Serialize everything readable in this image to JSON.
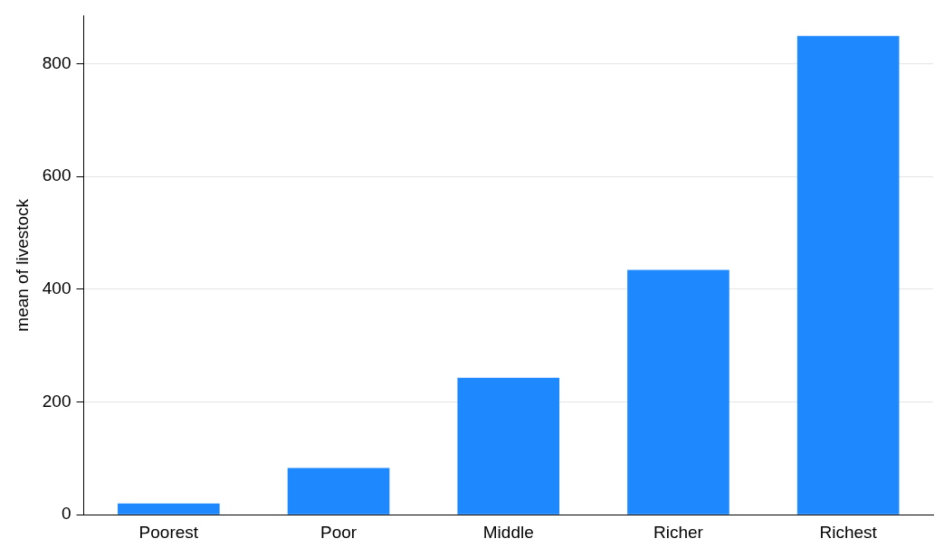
{
  "chart_data": {
    "type": "bar",
    "ylabel": "mean of livestock",
    "categories": [
      "Poorest",
      "Poor",
      "Middle",
      "Richer",
      "Richest"
    ],
    "values": [
      20,
      83,
      243,
      434,
      849
    ],
    "color": "#1e88ff",
    "ylim": [
      0,
      885
    ],
    "yticks": [
      0,
      200,
      400,
      600,
      800
    ],
    "grid": "y",
    "legend": false
  }
}
